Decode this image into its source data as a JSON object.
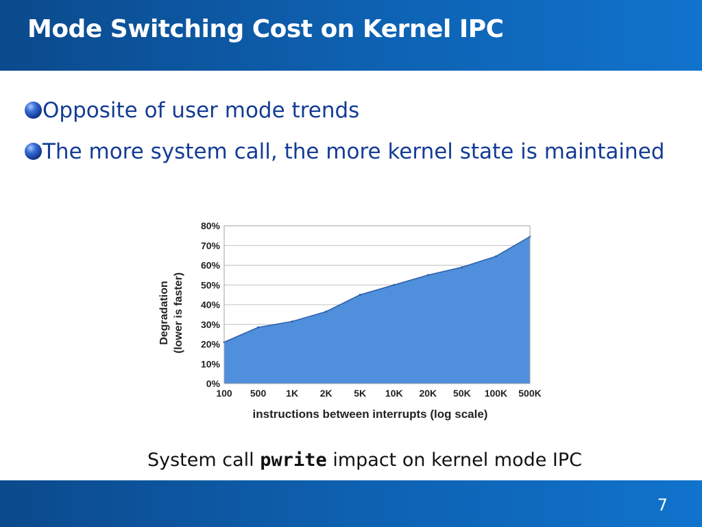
{
  "slide": {
    "title": "Mode Switching Cost on Kernel IPC",
    "bullets": [
      "Opposite of user mode trends",
      "The more system call, the more kernel state is maintained"
    ],
    "caption": {
      "prefix": "System call ",
      "code": "pwrite",
      "suffix": " impact on kernel mode IPC"
    },
    "page_number": "7"
  },
  "icons": {
    "bullet": "blue-sphere-bullet-icon"
  },
  "colors": {
    "header_bg": "#0e60b0",
    "bullet_text": "#143c96",
    "area_fill": "#4f8fdc",
    "area_stroke": "#2a5fa8",
    "grid": "#c0c0c0"
  },
  "chart_data": {
    "type": "area",
    "categories": [
      "100",
      "500",
      "1K",
      "2K",
      "5K",
      "10K",
      "20K",
      "50K",
      "100K",
      "500K"
    ],
    "values": [
      0.21,
      0.285,
      0.315,
      0.365,
      0.45,
      0.5,
      0.55,
      0.59,
      0.645,
      0.745
    ],
    "ylabel": [
      "Degradation",
      "(lower is faster)"
    ],
    "xlabel": "instructions between interrupts (log scale)",
    "yticks": [
      "0%",
      "10%",
      "20%",
      "30%",
      "40%",
      "50%",
      "60%",
      "70%",
      "80%"
    ],
    "ylim": [
      0,
      0.8
    ],
    "grid": true,
    "legend": "none"
  }
}
